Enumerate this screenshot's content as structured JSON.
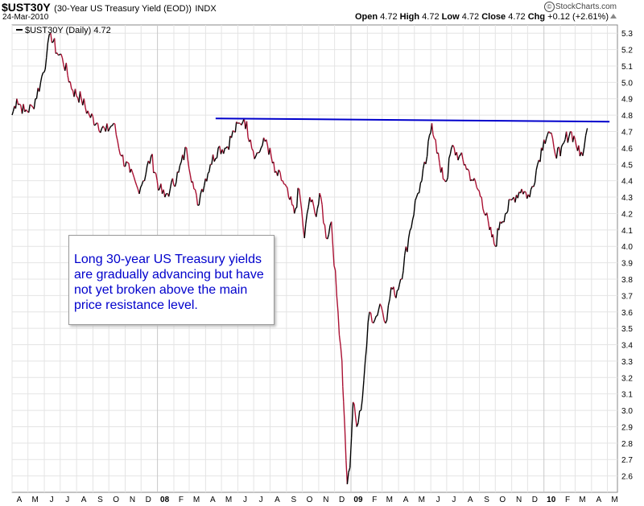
{
  "header": {
    "symbol": "$UST30Y",
    "description": "(30-Year US Treasury Yield (EOD))",
    "exchange": "INDX",
    "date": "24-Mar-2010",
    "brand": "StockCharts.com",
    "ohlc": {
      "open_label": "Open",
      "open": "4.72",
      "high_label": "High",
      "high": "4.72",
      "low_label": "Low",
      "low": "4.72",
      "close_label": "Close",
      "close": "4.72",
      "chg_label": "Chg",
      "chg": "+0.12 (+2.61%)"
    }
  },
  "legend": {
    "label": "$UST30Y (Daily) 4.72"
  },
  "annotation": "Long 30-year US Treasury yields are gradually advancing but have not yet broken above the main price resistance level.",
  "colors": {
    "price_up": "#000000",
    "price_down": "#aa1133",
    "resistance": "#0000cc",
    "grid": "#e4e4e4"
  },
  "chart_data": {
    "type": "line",
    "title": "$UST30Y (30-Year US Treasury Yield (EOD))",
    "ylim": [
      2.5,
      5.35
    ],
    "y_ticks": [
      2.6,
      2.7,
      2.8,
      2.9,
      3.0,
      3.1,
      3.2,
      3.3,
      3.4,
      3.5,
      3.6,
      3.7,
      3.8,
      3.9,
      4.0,
      4.1,
      4.2,
      4.3,
      4.4,
      4.5,
      4.6,
      4.7,
      4.8,
      4.9,
      5.0,
      5.1,
      5.2,
      5.3
    ],
    "x_tick_labels": [
      "A",
      "M",
      "J",
      "J",
      "A",
      "S",
      "O",
      "N",
      "D",
      "08",
      "F",
      "M",
      "A",
      "M",
      "J",
      "J",
      "A",
      "S",
      "O",
      "N",
      "D",
      "09",
      "F",
      "M",
      "A",
      "M",
      "J",
      "J",
      "A",
      "S",
      "O",
      "N",
      "D",
      "10",
      "F",
      "M",
      "A",
      "M"
    ],
    "xlim": [
      "2007-04-01",
      "2010-05-20"
    ],
    "grid": true,
    "legend_position": "top-left",
    "series": [
      {
        "name": "$UST30Y (Daily)",
        "x": [
          "2007-04-01",
          "2007-04-10",
          "2007-04-25",
          "2007-05-10",
          "2007-05-25",
          "2007-06-05",
          "2007-06-13",
          "2007-06-25",
          "2007-07-05",
          "2007-07-25",
          "2007-08-10",
          "2007-08-25",
          "2007-09-10",
          "2007-09-25",
          "2007-10-10",
          "2007-10-25",
          "2007-11-10",
          "2007-11-25",
          "2007-12-05",
          "2007-12-20",
          "2008-01-05",
          "2008-01-15",
          "2008-01-25",
          "2008-02-10",
          "2008-02-25",
          "2008-03-10",
          "2008-03-17",
          "2008-03-25",
          "2008-04-10",
          "2008-04-25",
          "2008-05-10",
          "2008-05-25",
          "2008-06-05",
          "2008-06-13",
          "2008-06-25",
          "2008-07-05",
          "2008-07-15",
          "2008-07-25",
          "2008-08-10",
          "2008-08-25",
          "2008-09-05",
          "2008-09-16",
          "2008-09-25",
          "2008-10-05",
          "2008-10-15",
          "2008-10-25",
          "2008-11-05",
          "2008-11-15",
          "2008-11-25",
          "2008-12-05",
          "2008-12-15",
          "2008-12-18",
          "2008-12-25",
          "2008-12-30",
          "2009-01-05",
          "2009-01-12",
          "2009-01-20",
          "2009-01-28",
          "2009-02-05",
          "2009-02-15",
          "2009-02-25",
          "2009-03-10",
          "2009-03-18",
          "2009-03-25",
          "2009-04-05",
          "2009-04-20",
          "2009-05-05",
          "2009-05-15",
          "2009-05-25",
          "2009-06-03",
          "2009-06-10",
          "2009-06-20",
          "2009-07-01",
          "2009-07-10",
          "2009-07-25",
          "2009-08-05",
          "2009-08-20",
          "2009-09-05",
          "2009-09-20",
          "2009-10-01",
          "2009-10-10",
          "2009-10-20",
          "2009-11-05",
          "2009-11-20",
          "2009-12-05",
          "2009-12-20",
          "2010-01-01",
          "2010-01-10",
          "2010-01-20",
          "2010-02-01",
          "2010-02-10",
          "2010-02-20",
          "2010-03-01",
          "2010-03-10",
          "2010-03-18",
          "2010-03-24"
        ],
        "y": [
          4.8,
          4.9,
          4.82,
          4.85,
          5.0,
          5.15,
          5.3,
          5.18,
          5.15,
          4.95,
          4.9,
          4.8,
          4.75,
          4.7,
          4.75,
          4.55,
          4.45,
          4.35,
          4.4,
          4.55,
          4.35,
          4.3,
          4.35,
          4.45,
          4.6,
          4.35,
          4.25,
          4.35,
          4.5,
          4.6,
          4.6,
          4.7,
          4.75,
          4.78,
          4.65,
          4.55,
          4.6,
          4.65,
          4.45,
          4.4,
          4.3,
          4.2,
          4.35,
          4.05,
          4.3,
          4.2,
          4.3,
          4.05,
          4.15,
          3.7,
          3.3,
          3.05,
          2.55,
          2.65,
          3.05,
          2.9,
          3.0,
          3.3,
          3.6,
          3.55,
          3.65,
          3.55,
          3.75,
          3.7,
          3.8,
          4.05,
          4.3,
          4.4,
          4.55,
          4.75,
          4.65,
          4.45,
          4.4,
          4.6,
          4.55,
          4.5,
          4.4,
          4.3,
          4.1,
          4.0,
          4.15,
          4.2,
          4.3,
          4.35,
          4.3,
          4.5,
          4.65,
          4.7,
          4.6,
          4.55,
          4.65,
          4.7,
          4.65,
          4.55,
          4.6,
          4.72
        ]
      }
    ],
    "resistance_line": {
      "x": [
        "2008-04-20",
        "2010-05-05"
      ],
      "y": [
        4.78,
        4.76
      ]
    }
  }
}
